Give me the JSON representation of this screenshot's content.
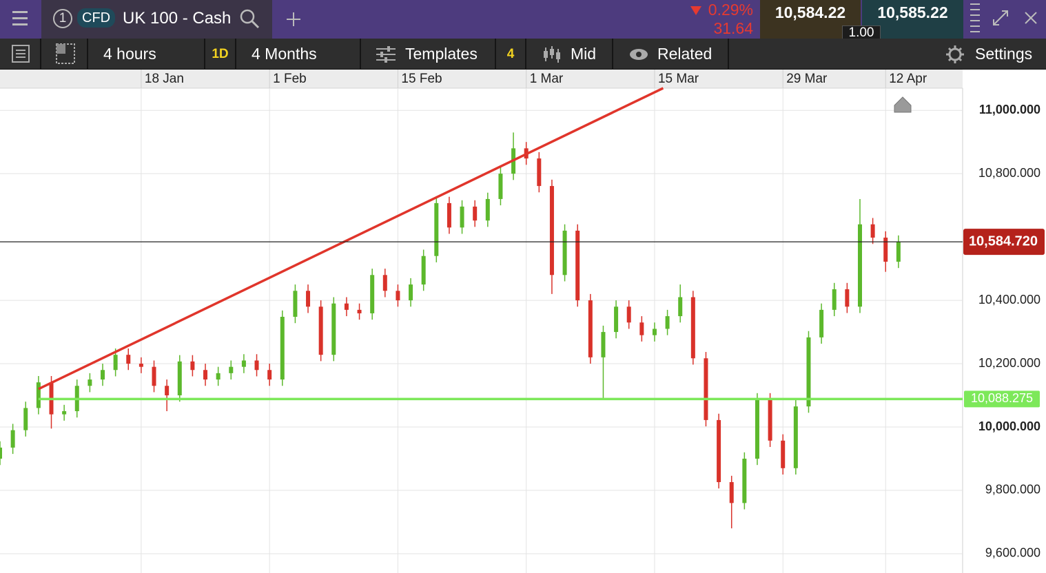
{
  "header": {
    "instrument_number": "1",
    "product_type": "CFD",
    "instrument": "UK 100 - Cash",
    "change_percent": "0.29%",
    "change_points": "31.64",
    "sell_price": "10,584.22",
    "spread": "1.00",
    "buy_price": "10,585.22"
  },
  "toolbar": {
    "interval": "4 hours",
    "interval_short": "1D",
    "range": "4 Months",
    "templates": "Templates",
    "templates_count": "4",
    "price_type": "Mid",
    "related": "Related",
    "settings": "Settings"
  },
  "chart_data": {
    "type": "candlestick",
    "up_color": "#5cb82c",
    "down_color": "#d9322a",
    "grid": true,
    "xlim": [
      0,
      225
    ],
    "ylim": [
      9539,
      11070
    ],
    "xticks": [
      {
        "value": 33,
        "label": "18 Jan"
      },
      {
        "value": 63,
        "label": "1 Feb"
      },
      {
        "value": 93,
        "label": "15 Feb"
      },
      {
        "value": 123,
        "label": "1 Mar"
      },
      {
        "value": 153,
        "label": "15 Mar"
      },
      {
        "value": 183,
        "label": "29 Mar"
      },
      {
        "value": 207,
        "label": "12 Apr"
      }
    ],
    "yticks": [
      {
        "value": 11000,
        "label": "11,000.000"
      },
      {
        "value": 10800,
        "label": "10,800.000"
      },
      {
        "value": 10400,
        "label": "10,400.000"
      },
      {
        "value": 10200,
        "label": "10,200.000"
      },
      {
        "value": 10000,
        "label": "10,000.000"
      },
      {
        "value": 9800,
        "label": "9,800.000"
      },
      {
        "value": 9600,
        "label": "9,600.000"
      }
    ],
    "x": [
      0,
      3,
      6,
      9,
      12,
      15,
      18,
      21,
      24,
      27,
      30,
      33,
      36,
      39,
      42,
      45,
      48,
      51,
      54,
      57,
      60,
      63,
      66,
      69,
      72,
      75,
      78,
      81,
      84,
      87,
      90,
      93,
      96,
      99,
      102,
      105,
      108,
      111,
      114,
      117,
      120,
      123,
      126,
      129,
      132,
      135,
      138,
      141,
      144,
      147,
      150,
      153,
      156,
      159,
      162,
      165,
      168,
      171,
      174,
      177,
      180,
      183,
      186,
      189,
      192,
      195,
      198,
      201,
      204,
      207,
      210
    ],
    "open": [
      9900,
      9935,
      9990,
      10060,
      10141,
      10040,
      10050,
      10130,
      10150,
      10180,
      10228,
      10200,
      10190,
      10130,
      10100,
      10207,
      10180,
      10150,
      10170,
      10190,
      10210,
      10180,
      10150,
      10348,
      10430,
      10380,
      10228,
      10390,
      10370,
      10359,
      10480,
      10430,
      10400,
      10450,
      10540,
      10707,
      10630,
      10696,
      10652,
      10720,
      10800,
      10880,
      10848,
      10761,
      10480,
      10620,
      10400,
      10220,
      10300,
      10380,
      10330,
      10290,
      10310,
      10350,
      10410,
      10217,
      10022,
      9826,
      9760,
      9900,
      10087,
      9957,
      9870,
      10065,
      10283,
      10370,
      10435,
      10380,
      10640,
      10598,
      10522
    ],
    "high": [
      9955,
      10010,
      10080,
      10161,
      10161,
      10070,
      10150,
      10170,
      10200,
      10248,
      10248,
      10220,
      10210,
      10150,
      10227,
      10227,
      10200,
      10190,
      10210,
      10230,
      10230,
      10200,
      10368,
      10450,
      10450,
      10400,
      10410,
      10410,
      10390,
      10500,
      10500,
      10450,
      10470,
      10560,
      10727,
      10727,
      10716,
      10716,
      10740,
      10820,
      10930,
      10900,
      10868,
      10781,
      10640,
      10640,
      10420,
      10320,
      10400,
      10400,
      10350,
      10330,
      10370,
      10450,
      10430,
      10237,
      10042,
      9846,
      9920,
      10107,
      10107,
      9977,
      10085,
      10303,
      10390,
      10455,
      10455,
      10720,
      10660,
      10618,
      10605
    ],
    "low": [
      9880,
      9915,
      9970,
      10040,
      9995,
      10020,
      10030,
      10110,
      10130,
      10160,
      10180,
      10170,
      10110,
      10050,
      10080,
      10160,
      10130,
      10130,
      10150,
      10170,
      10160,
      10130,
      10130,
      10328,
      10360,
      10208,
      10208,
      10350,
      10339,
      10339,
      10410,
      10380,
      10380,
      10430,
      10520,
      10610,
      10610,
      10632,
      10632,
      10700,
      10780,
      10828,
      10741,
      10420,
      10460,
      10380,
      10200,
      10090,
      10280,
      10310,
      10270,
      10270,
      10290,
      10330,
      10197,
      10002,
      9806,
      9680,
      9740,
      9880,
      9937,
      9850,
      9850,
      10045,
      10263,
      10350,
      10360,
      10360,
      10578,
      10490,
      10502
    ],
    "close": [
      9935,
      9990,
      10060,
      10141,
      10040,
      10050,
      10130,
      10150,
      10180,
      10228,
      10200,
      10190,
      10130,
      10100,
      10207,
      10180,
      10150,
      10170,
      10190,
      10210,
      10180,
      10150,
      10348,
      10430,
      10380,
      10228,
      10390,
      10370,
      10359,
      10480,
      10430,
      10400,
      10450,
      10540,
      10707,
      10630,
      10696,
      10652,
      10720,
      10800,
      10880,
      10848,
      10761,
      10480,
      10620,
      10400,
      10220,
      10300,
      10380,
      10330,
      10290,
      10310,
      10350,
      10410,
      10217,
      10022,
      9826,
      9760,
      9900,
      10087,
      9957,
      9870,
      10065,
      10283,
      10370,
      10435,
      10380,
      10640,
      10598,
      10522,
      10584.72
    ],
    "trend_line": {
      "color": "#e0352b",
      "x": [
        9,
        155
      ],
      "y": [
        10120,
        11070
      ]
    },
    "support_line": {
      "color": "#7de85a",
      "value": 10088.275,
      "value_label": "10,088.275"
    },
    "price_line": {
      "color": "#b5221b",
      "value": 10584.72,
      "value_label": "10,584.720"
    }
  }
}
